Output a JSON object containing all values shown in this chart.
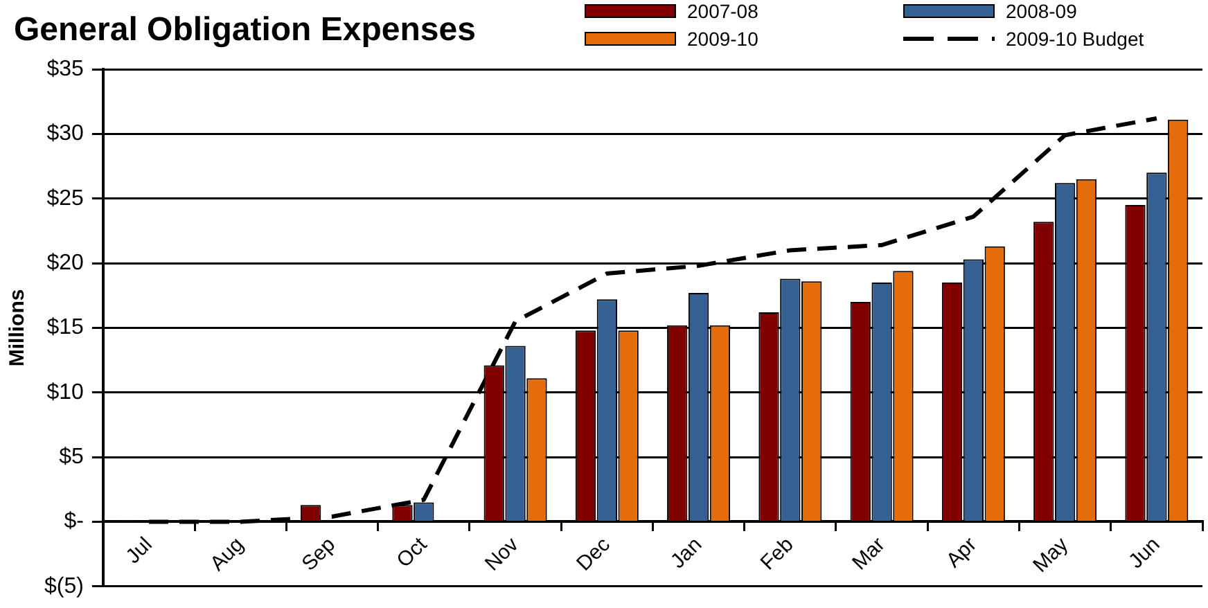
{
  "chart_data": {
    "type": "bar",
    "title": "General Obligation Expenses",
    "ylabel": "Millions",
    "categories": [
      "Jul",
      "Aug",
      "Sep",
      "Oct",
      "Nov",
      "Dec",
      "Jan",
      "Feb",
      "Mar",
      "Apr",
      "May",
      "Jun"
    ],
    "series": [
      {
        "name": "2007-08",
        "color": "#800000",
        "values": [
          0.1,
          null,
          1.3,
          1.3,
          12.1,
          14.8,
          15.2,
          16.2,
          17.0,
          18.5,
          23.2,
          24.5
        ]
      },
      {
        "name": "2008-09",
        "color": "#376092",
        "values": [
          -0.1,
          -0.1,
          null,
          1.5,
          13.6,
          17.2,
          17.7,
          18.8,
          18.5,
          20.3,
          26.2,
          27.0
        ]
      },
      {
        "name": "2009-10",
        "color": "#e46c0a",
        "values": [
          null,
          0,
          0,
          0,
          11.1,
          14.8,
          15.2,
          18.6,
          19.4,
          21.3,
          26.5,
          31.1
        ]
      },
      {
        "name": "2009-10 Budget",
        "type": "line",
        "color": "#000000",
        "line_style": "dashed",
        "marker": "none",
        "values": [
          0,
          0,
          0.4,
          1.7,
          15.5,
          19.2,
          19.8,
          21.0,
          21.4,
          23.6,
          29.9,
          31.2
        ]
      }
    ],
    "ylim": [
      -5,
      35
    ],
    "yticks": [
      {
        "value": -5,
        "label": "$(5)"
      },
      {
        "value": 0,
        "label": "$-"
      },
      {
        "value": 5,
        "label": "$5"
      },
      {
        "value": 10,
        "label": "$10"
      },
      {
        "value": 15,
        "label": "$15"
      },
      {
        "value": 20,
        "label": "$20"
      },
      {
        "value": 25,
        "label": "$25"
      },
      {
        "value": 30,
        "label": "$30"
      },
      {
        "value": 35,
        "label": "$35"
      }
    ],
    "grid": "y",
    "legend": "top right"
  }
}
